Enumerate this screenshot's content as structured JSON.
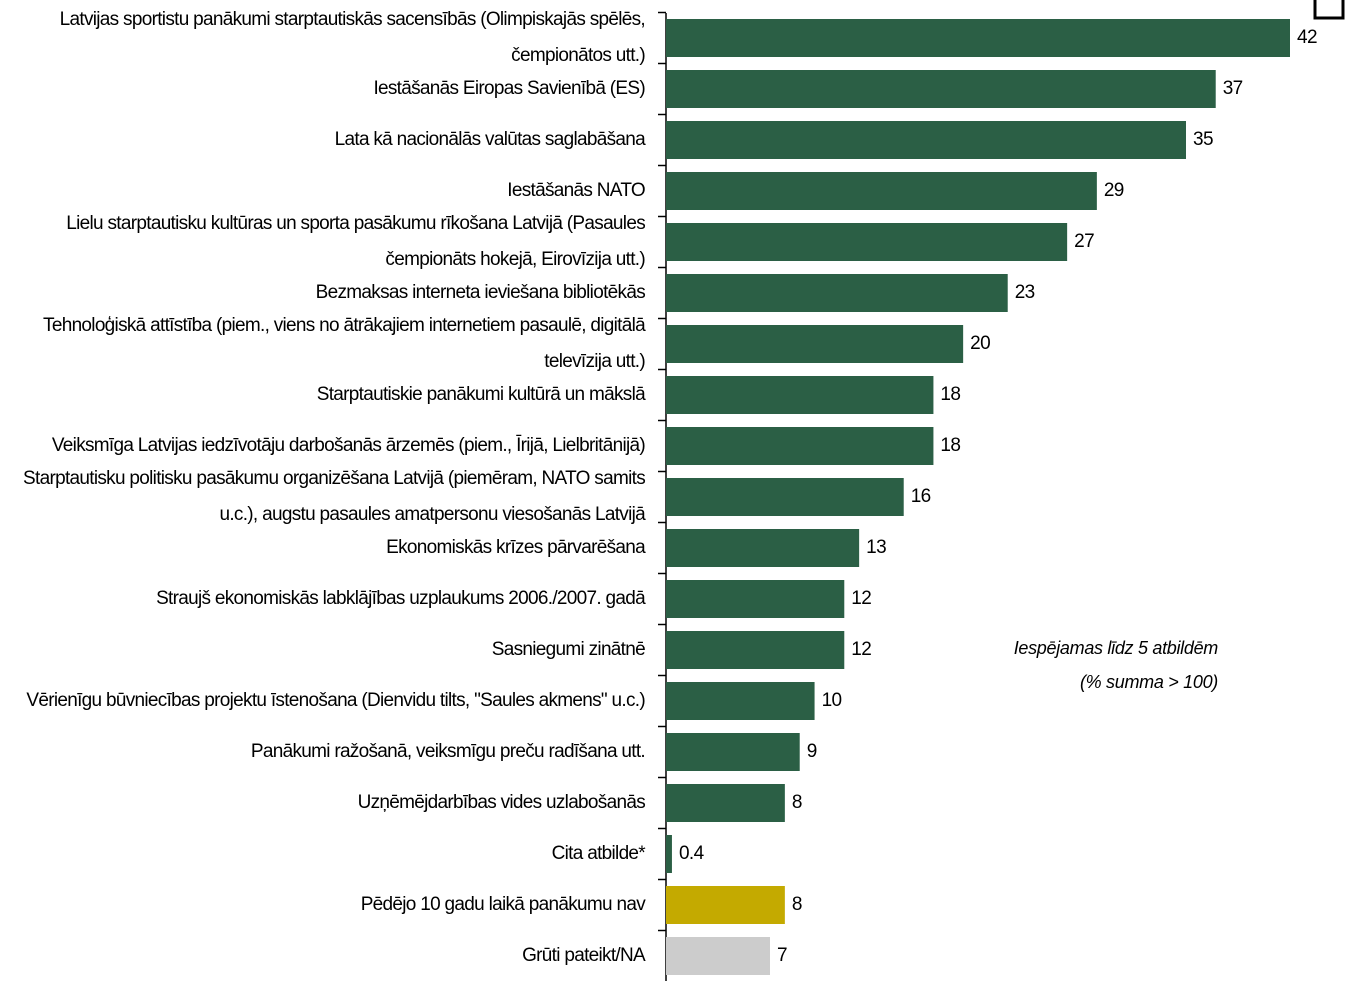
{
  "chart_data": {
    "type": "barh",
    "categories": [
      "Latvijas sportistu panākumi starptautiskās sacensībās (Olimpiskajās spēlēs, čempionātos utt.)",
      "Iestāšanās Eiropas Savienībā (ES)",
      "Lata kā nacionālās valūtas saglabāšana",
      "Iestāšanās NATO",
      "Lielu starptautisku kultūras un sporta pasākumu rīkošana Latvijā (Pasaules čempionāts hokejā, Eirovīzija utt.)",
      "Bezmaksas interneta ieviešana bibliotēkās",
      "Tehnoloģiskā attīstība (piem., viens no ātrākajiem internetiem pasaulē, digitālā televīzija utt.)",
      "Starptautiskie panākumi kultūrā un mākslā",
      "Veiksmīga Latvijas iedzīvotāju darbošanās ārzemēs (piem., Īrijā, Lielbritānijā)",
      "Starptautisku politisku pasākumu organizēšana Latvijā (piemēram, NATO samits u.c.), augstu pasaules amatpersonu viesošanās Latvijā",
      "Ekonomiskās krīzes pārvarēšana",
      "Straujš ekonomiskās labklājības uzplaukums 2006./2007. gadā",
      "Sasniegumi zinātnē",
      "Vērienīgu būvniecības projektu īstenošana (Dienvidu tilts, \"Saules akmens\" u.c.)",
      "Panākumi ražošanā, veiksmīgu preču radīšana utt.",
      "Uzņēmējdarbības vides uzlabošanās",
      "Cita atbilde*",
      "Pēdējo 10 gadu laikā panākumu nav",
      "Grūti pateikt/NA"
    ],
    "values": [
      42,
      37,
      35,
      29,
      27,
      23,
      20,
      18,
      18,
      16,
      13,
      12,
      12,
      10,
      9,
      8,
      0.4,
      8,
      7
    ],
    "colors": [
      "#2b5f45",
      "#2b5f45",
      "#2b5f45",
      "#2b5f45",
      "#2b5f45",
      "#2b5f45",
      "#2b5f45",
      "#2b5f45",
      "#2b5f45",
      "#2b5f45",
      "#2b5f45",
      "#2b5f45",
      "#2b5f45",
      "#2b5f45",
      "#2b5f45",
      "#2b5f45",
      "#2b5f45",
      "#c4aa00",
      "#cccccc"
    ],
    "note": [
      "Iespējamas līdz 5 atbildēm",
      "(% summa > 100)"
    ]
  }
}
